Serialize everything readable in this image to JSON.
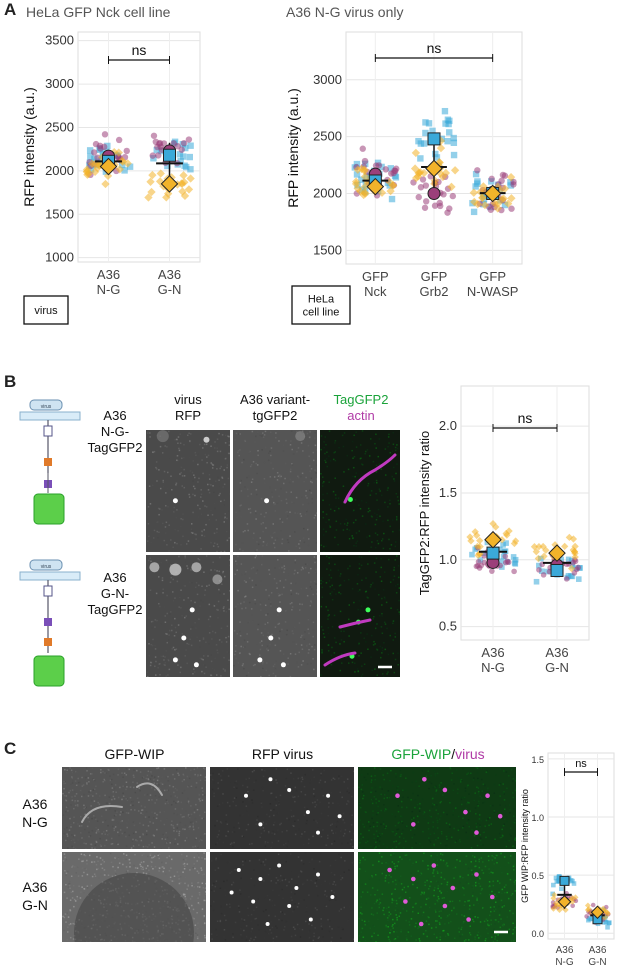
{
  "panels": {
    "A": {
      "letter": "A"
    },
    "B": {
      "letter": "B"
    },
    "C": {
      "letter": "C"
    }
  },
  "chart_data": [
    {
      "id": "A-left",
      "type": "scatter",
      "title": "HeLa GFP Nck cell line",
      "ylabel": "RFP intensity (a.u.)",
      "row_label": "virus",
      "categories": [
        "A36\nN-G",
        "A36\nG-N"
      ],
      "ylim": [
        950,
        3600
      ],
      "yticks": [
        1000,
        1500,
        2000,
        2500,
        3000,
        3500
      ],
      "significance": "ns",
      "means": {
        "square": [
          2110,
          2180
        ],
        "circle": [
          2170,
          2230
        ],
        "diamond": [
          2050,
          1850
        ]
      },
      "colors": {
        "square": "#3aa9d9",
        "circle": "#9b3f7a",
        "diamond": "#f2b32a"
      }
    },
    {
      "id": "A-right",
      "type": "scatter",
      "title": "A36 N-G virus only",
      "ylabel": "RFP intensity (a.u.)",
      "row_label": "HeLa\ncell line",
      "categories": [
        "GFP\nNck",
        "GFP\nGrb2",
        "GFP\nN-WASP"
      ],
      "ylim": [
        1380,
        3420
      ],
      "yticks": [
        1500,
        2000,
        2500,
        3000
      ],
      "significance": "ns",
      "means": {
        "square": [
          2110,
          2480,
          2000
        ],
        "circle": [
          2170,
          2000,
          2010
        ],
        "diamond": [
          2060,
          2220,
          2000
        ]
      },
      "colors": {
        "square": "#3aa9d9",
        "circle": "#9b3f7a",
        "diamond": "#f2b32a"
      }
    },
    {
      "id": "B",
      "type": "scatter",
      "ylabel": "TagGFP2:RFP intensity ratio",
      "categories": [
        "A36\nN-G",
        "A36\nG-N"
      ],
      "ylim": [
        0.4,
        2.3
      ],
      "yticks": [
        0.5,
        1.0,
        1.5,
        2.0
      ],
      "significance": "ns",
      "means": {
        "square": [
          1.05,
          0.92
        ],
        "circle": [
          0.98,
          0.96
        ],
        "diamond": [
          1.15,
          1.05
        ]
      },
      "colors": {
        "square": "#3aa9d9",
        "circle": "#9b3f7a",
        "diamond": "#f2b32a"
      }
    },
    {
      "id": "C",
      "type": "scatter",
      "ylabel": "GFP WIP:RFP intensity ratio",
      "categories": [
        "A36\nN-G",
        "A36\nG-N"
      ],
      "ylim": [
        -0.05,
        1.55
      ],
      "yticks": [
        0.0,
        0.5,
        1.0,
        1.5
      ],
      "significance": "ns",
      "means": {
        "square": [
          0.45,
          0.12
        ],
        "circle": [
          0.27,
          0.16
        ],
        "diamond": [
          0.27,
          0.18
        ]
      },
      "colors": {
        "square": "#3aa9d9",
        "circle": "#9b3f7a",
        "diamond": "#f2b32a"
      }
    }
  ],
  "panelB": {
    "col_labels": [
      "virus\nRFP",
      "A36 variant-\ntgGFP2"
    ],
    "merge_label_green": "TagGFP2",
    "merge_label_magenta": "actin",
    "row_labels": [
      "A36\nN-G-\nTagGFP2",
      "A36\nG-N-\nTagGFP2"
    ],
    "schematic_tag": "virus"
  },
  "panelC": {
    "col_labels": [
      "GFP-WIP",
      "RFP virus"
    ],
    "merge_label_green": "GFP-WIP",
    "merge_label_slash": "/",
    "merge_label_magenta": "virus",
    "row_labels": [
      "A36\nN-G",
      "A36\nG-N"
    ]
  },
  "colors": {
    "green": "#1aa33a",
    "magenta": "#b03aa6"
  }
}
